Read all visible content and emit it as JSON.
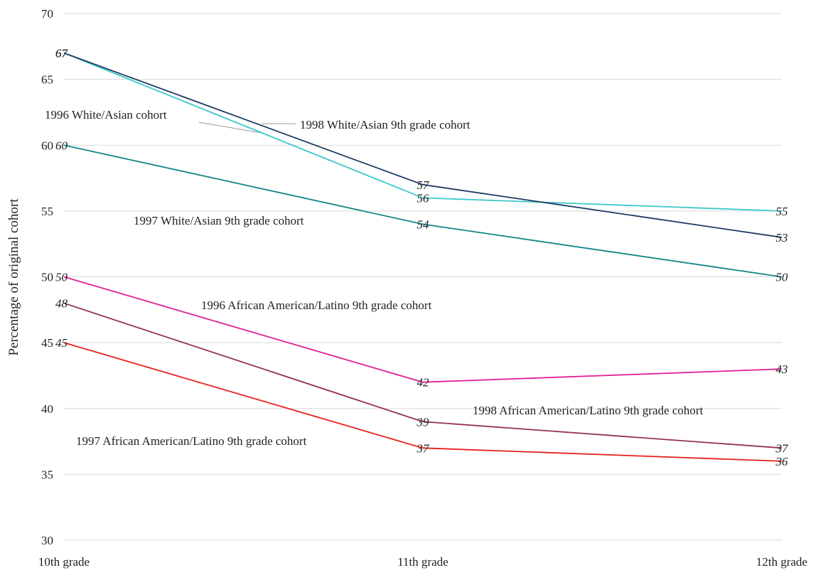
{
  "chart_data": {
    "type": "line",
    "title": "",
    "xlabel": "",
    "ylabel": "Percentage of original cohort",
    "categories": [
      "10th grade",
      "11th grade",
      "12th grade"
    ],
    "ylim": [
      30,
      70
    ],
    "yticks": [
      30,
      35,
      40,
      45,
      50,
      55,
      60,
      65,
      70
    ],
    "grid": "horizontal",
    "legend": "none",
    "series": [
      {
        "name": "1996 White/Asian cohort",
        "values": [
          67,
          56,
          55
        ],
        "color": "#3ec9c9"
      },
      {
        "name": "1998 White/Asian 9th grade cohort",
        "values": [
          67,
          57,
          53
        ],
        "color": "#1f3b63"
      },
      {
        "name": "1997 White/Asian 9th grade cohort",
        "values": [
          60,
          54,
          50
        ],
        "color": "#14878a"
      },
      {
        "name": "1996 African American/Latino 9th grade cohort",
        "values": [
          50,
          42,
          43
        ],
        "color": "#e01f96"
      },
      {
        "name": "1998 African American/Latino 9th grade cohort",
        "values": [
          48,
          39,
          37
        ],
        "color": "#93305e"
      },
      {
        "name": "1997 African American/Latino 9th grade cohort",
        "values": [
          45,
          37,
          36
        ],
        "color": "#e3221b"
      }
    ]
  }
}
